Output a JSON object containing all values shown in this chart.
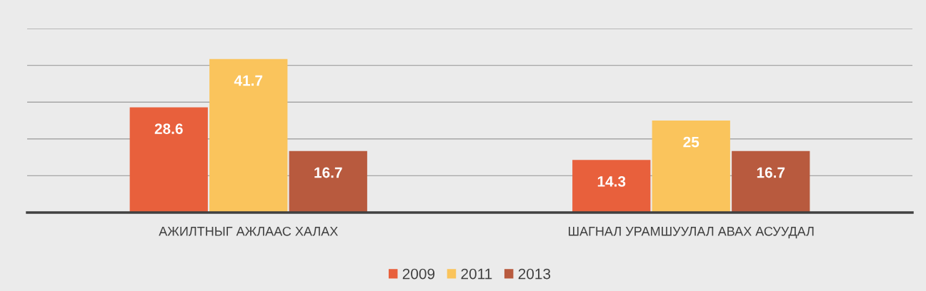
{
  "chart_data": {
    "type": "bar",
    "categories": [
      "АЖИЛТНЫГ АЖЛААС ХАЛАХ",
      "ШАГНАЛ УРАМШУУЛАЛ АВАХ АСУУДАЛ"
    ],
    "series": [
      {
        "name": "2009",
        "color": "#e8603c",
        "values": [
          28.6,
          14.3
        ]
      },
      {
        "name": "2011",
        "color": "#fac45c",
        "values": [
          41.7,
          25
        ]
      },
      {
        "name": "2013",
        "color": "#b85a3e",
        "values": [
          16.7,
          16.7
        ]
      }
    ],
    "ylim": [
      0,
      50
    ],
    "yticks": [
      {
        "value": 0,
        "label": null
      },
      {
        "value": 10,
        "label": null
      },
      {
        "value": 20,
        "label": null
      },
      {
        "value": 30,
        "label": null
      },
      {
        "value": 40,
        "label": null
      },
      {
        "value": 50,
        "label": null
      }
    ],
    "tick_labels": "x",
    "grid": "y",
    "legend": "bottom",
    "data_labels": true
  }
}
